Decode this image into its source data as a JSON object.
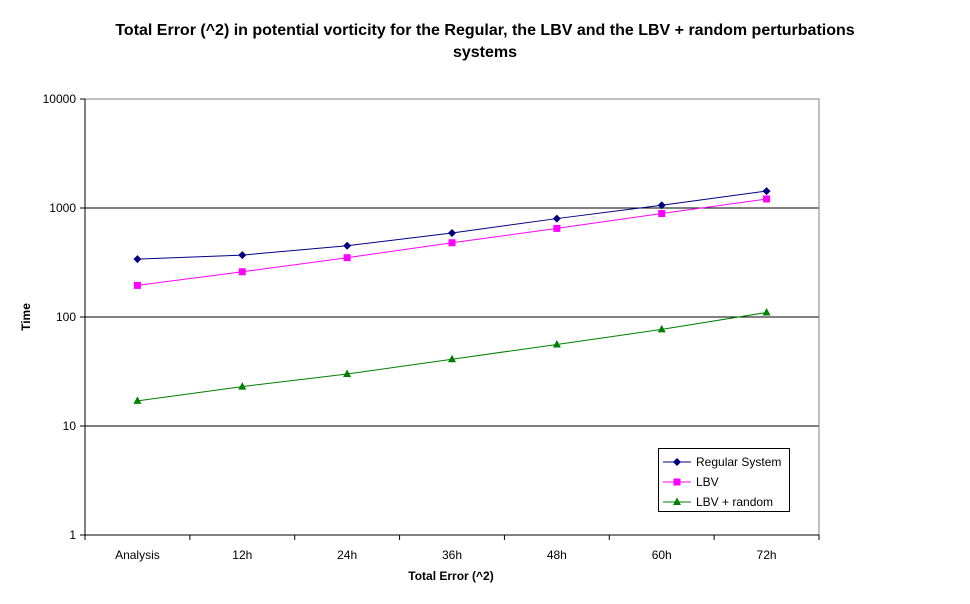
{
  "chart_data": {
    "type": "line",
    "title_lines": [
      "Total Error (^2) in potential vorticity for the Regular, the LBV and the LBV + random perturbations",
      "systems"
    ],
    "xlabel": "Total Error (^2)",
    "ylabel": "Time",
    "y_scale": "log",
    "ylim": [
      1,
      10000
    ],
    "y_ticks": [
      "1",
      "10",
      "100",
      "1000",
      "10000"
    ],
    "categories": [
      "Analysis",
      "12h",
      "24h",
      "36h",
      "48h",
      "60h",
      "72h"
    ],
    "grid": "horizontal major lines",
    "legend_position": "bottom-right",
    "series": [
      {
        "name": "Regular System",
        "color": "#000080",
        "marker": "diamond",
        "values": [
          340,
          370,
          450,
          590,
          800,
          1060,
          1430
        ]
      },
      {
        "name": "LBV",
        "color": "#ff00ff",
        "marker": "square",
        "values": [
          195,
          260,
          350,
          480,
          650,
          890,
          1210
        ]
      },
      {
        "name": "LBV + random",
        "color": "#008000",
        "marker": "triangle",
        "values": [
          17,
          23,
          30,
          41,
          56,
          77,
          110
        ]
      }
    ]
  }
}
